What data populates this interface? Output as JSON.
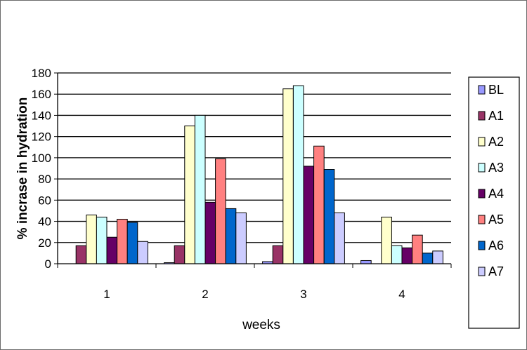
{
  "chart_data": {
    "type": "bar",
    "title": "",
    "xlabel": "weeks",
    "ylabel": "% incrase in hydration",
    "ylim": [
      0,
      180
    ],
    "yticks": [
      0,
      20,
      40,
      60,
      80,
      100,
      120,
      140,
      160,
      180
    ],
    "categories": [
      "1",
      "2",
      "3",
      "4"
    ],
    "grid": true,
    "legend_position": "right",
    "series": [
      {
        "name": "BL",
        "color": "#9999ff",
        "values": [
          0,
          1,
          2,
          3
        ]
      },
      {
        "name": "A1",
        "color": "#993366",
        "values": [
          17,
          17,
          17,
          0
        ]
      },
      {
        "name": "A2",
        "color": "#ffffcc",
        "values": [
          46,
          130,
          165,
          44
        ]
      },
      {
        "name": "A3",
        "color": "#ccffff",
        "values": [
          44,
          140,
          168,
          17
        ]
      },
      {
        "name": "A4",
        "color": "#660066",
        "values": [
          25,
          58,
          92,
          15
        ]
      },
      {
        "name": "A5",
        "color": "#ff8080",
        "values": [
          42,
          99,
          111,
          27
        ]
      },
      {
        "name": "A6",
        "color": "#0066cc",
        "values": [
          39,
          52,
          89,
          10
        ]
      },
      {
        "name": "A7",
        "color": "#ccccff",
        "values": [
          21,
          48,
          48,
          12
        ]
      }
    ]
  }
}
